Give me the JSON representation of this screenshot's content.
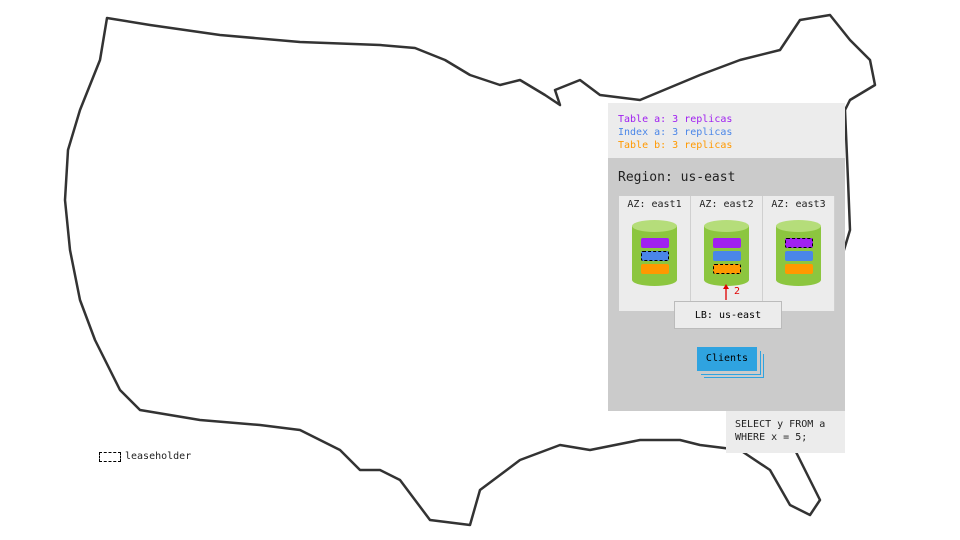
{
  "replicas": [
    {
      "text": "Table a: 3 replicas",
      "color": "#a020f0"
    },
    {
      "text": "Index a: 3 replicas",
      "color": "#4a86e8"
    },
    {
      "text": "Table b: 3 replicas",
      "color": "#ff9900"
    }
  ],
  "region": {
    "title": "Region: us-east",
    "azs": [
      {
        "label": "AZ: east1",
        "leaseholder": "index-a"
      },
      {
        "label": "AZ: east2",
        "leaseholder": "table-b"
      },
      {
        "label": "AZ: east3",
        "leaseholder": "table-a"
      }
    ],
    "arrow_label": "2",
    "lb": "LB: us-east",
    "clients": "Clients"
  },
  "query": {
    "line1": "SELECT y FROM a",
    "line2": "WHERE x = 5;"
  },
  "legend": {
    "label": "leaseholder"
  },
  "colors": {
    "cylinder": "#8cc63f",
    "cylinder_top": "#b5dd7a",
    "table_a": "#a020f0",
    "index_a": "#4a86e8",
    "table_b": "#ff9900",
    "clients": "#2fa3e0",
    "arrow": "#e00000"
  }
}
